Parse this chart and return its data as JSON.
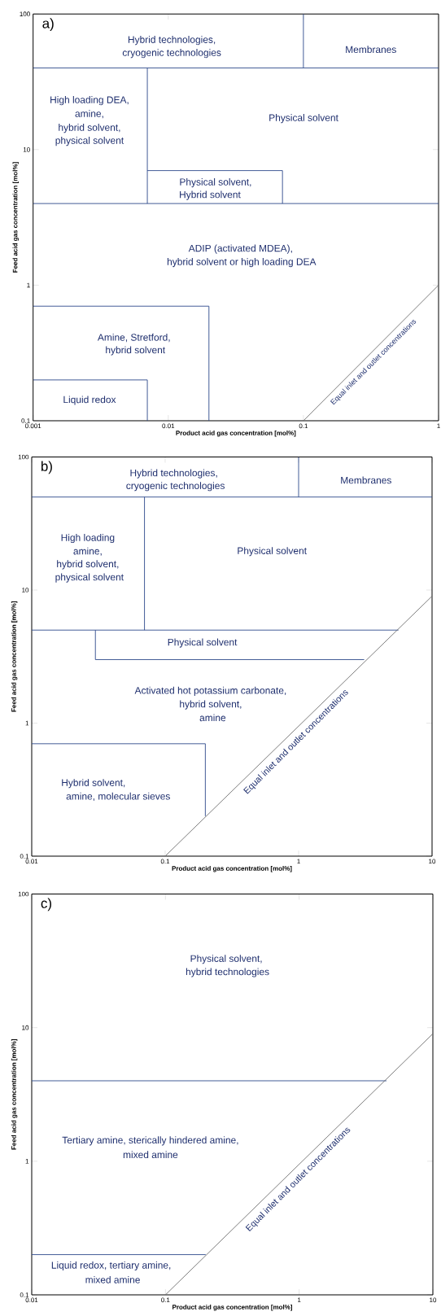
{
  "chart_data": [
    {
      "type": "line",
      "title": "a)",
      "xlabel": "Product acid gas concentration [mol%]",
      "ylabel": "Feed acid gas concentration [mol%]",
      "log": "xy",
      "xlim": [
        0.001,
        1
      ],
      "ylim": [
        0.1,
        100
      ],
      "xticks": [
        0.001,
        0.01,
        0.1,
        1
      ],
      "yticks": [
        0.1,
        1,
        10,
        100
      ],
      "series": [
        {
          "x": [
            0.001,
            1
          ],
          "values": [
            40,
            40
          ],
          "color": "#2e4a8b"
        },
        {
          "x": [
            0.1,
            0.1
          ],
          "values": [
            40,
            100
          ],
          "color": "#2e4a8b"
        },
        {
          "x": [
            0.007,
            0.007
          ],
          "values": [
            4,
            40
          ],
          "color": "#2e4a8b"
        },
        {
          "x": [
            0.001,
            1
          ],
          "values": [
            4,
            4
          ],
          "color": "#2e4a8b"
        },
        {
          "x": [
            0.007,
            0.07,
            0.07
          ],
          "values": [
            7,
            7,
            4
          ],
          "color": "#2e4a8b"
        },
        {
          "x": [
            0.001,
            0.02,
            0.02
          ],
          "values": [
            0.7,
            0.7,
            0.1
          ],
          "color": "#2e4a8b"
        },
        {
          "x": [
            0.001,
            0.007,
            0.007
          ],
          "values": [
            0.2,
            0.2,
            0.1
          ],
          "color": "#2e4a8b"
        },
        {
          "x": [
            0.1,
            1
          ],
          "values": [
            0.1,
            1
          ],
          "color": "#6e6e6e"
        }
      ],
      "annotations": [
        "Hybrid technologies,",
        "cryogenic technologies",
        "Membranes",
        "High loading DEA,",
        "amine,",
        "hybrid solvent,",
        "physical solvent",
        "Physical solvent",
        "Physical solvent,",
        "Hybrid solvent",
        "ADIP (activated MDEA),",
        "hybrid solvent or high loading DEA",
        "Amine, Stretford,",
        "hybrid solvent",
        "Liquid redox",
        "Equal inlet and outlet concentrations"
      ]
    },
    {
      "type": "line",
      "title": "b)",
      "xlabel": "Product acid gas concentration [mol%]",
      "ylabel": "Feed acid gas concentration [mol%]",
      "log": "xy",
      "xlim": [
        0.01,
        10
      ],
      "ylim": [
        0.1,
        100
      ],
      "xticks": [
        0.01,
        0.1,
        1,
        10
      ],
      "yticks": [
        0.1,
        1,
        10,
        100
      ],
      "series": [
        {
          "x": [
            0.01,
            10
          ],
          "values": [
            50,
            50
          ],
          "color": "#2e4a8b"
        },
        {
          "x": [
            1,
            1
          ],
          "values": [
            50,
            100
          ],
          "color": "#2e4a8b"
        },
        {
          "x": [
            0.07,
            0.07
          ],
          "values": [
            5,
            50
          ],
          "color": "#2e4a8b"
        },
        {
          "x": [
            0.01,
            5.6
          ],
          "values": [
            5,
            5
          ],
          "color": "#2e4a8b"
        },
        {
          "x": [
            0.03,
            0.03,
            3.1
          ],
          "values": [
            5,
            3,
            3
          ],
          "color": "#2e4a8b"
        },
        {
          "x": [
            0.01,
            0.2,
            0.2
          ],
          "values": [
            0.7,
            0.7,
            0.2
          ],
          "color": "#2e4a8b"
        },
        {
          "x": [
            0.1,
            10
          ],
          "values": [
            0.1,
            9
          ],
          "color": "#6e6e6e"
        }
      ],
      "annotations": [
        "Hybrid technologies,",
        "cryogenic technologies",
        "Membranes",
        "High loading",
        "amine,",
        "hybrid solvent,",
        "physical solvent",
        "Physical solvent",
        "Physical solvent",
        "Activated hot potassium carbonate,",
        "hybrid solvent,",
        "amine",
        "Hybrid solvent,",
        "amine, molecular sieves",
        "Equal inlet and outlet concentrations"
      ]
    },
    {
      "type": "line",
      "title": "c)",
      "xlabel": "Product acid gas concentration [mol%]",
      "ylabel": "Feed acid gas concentration [mol%]",
      "log": "xy",
      "xlim": [
        0.01,
        10
      ],
      "ylim": [
        0.1,
        100
      ],
      "xticks": [
        0.01,
        0.1,
        1,
        10
      ],
      "yticks": [
        0.1,
        1,
        10,
        100
      ],
      "series": [
        {
          "x": [
            0.01,
            4.5
          ],
          "values": [
            4,
            4
          ],
          "color": "#2e4a8b"
        },
        {
          "x": [
            0.01,
            0.2
          ],
          "values": [
            0.2,
            0.2
          ],
          "color": "#2e4a8b"
        },
        {
          "x": [
            0.1,
            10
          ],
          "values": [
            0.1,
            9
          ],
          "color": "#6e6e6e"
        }
      ],
      "annotations": [
        "Physical solvent,",
        "hybrid technologies",
        "Tertiary amine, sterically hindered amine,",
        "mixed amine",
        "Liquid redox, tertiary amine,",
        "mixed amine",
        "Equal inlet and outlet concentrations"
      ]
    }
  ]
}
